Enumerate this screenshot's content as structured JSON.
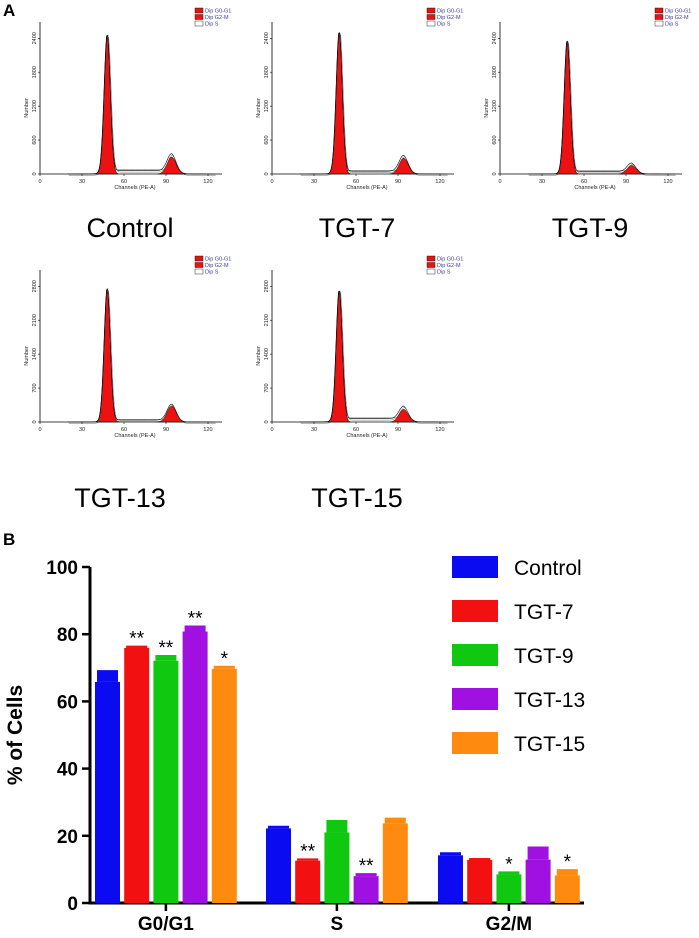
{
  "panel_a": {
    "letter": "A",
    "legend": [
      "Dip G0-G1",
      "Dip G2-M",
      "Dip S"
    ],
    "x_axis_label": "Channels (PE-A)",
    "y_axis_label": "Number",
    "x_ticks": [
      "0",
      "30",
      "60",
      "90",
      "120"
    ],
    "histograms": [
      {
        "label": "Control",
        "y_ticks": [
          "0",
          "600",
          "1200",
          "1800",
          "2400"
        ],
        "g1_peak": 2450,
        "g2_peak": 300,
        "s_level": 60
      },
      {
        "label": "TGT-7",
        "y_ticks": [
          "0",
          "600",
          "1200",
          "1800",
          "2400"
        ],
        "g1_peak": 2500,
        "g2_peak": 280,
        "s_level": 50
      },
      {
        "label": "TGT-9",
        "y_ticks": [
          "0",
          "600",
          "1200",
          "1800",
          "2400"
        ],
        "g1_peak": 2350,
        "g2_peak": 150,
        "s_level": 45
      },
      {
        "label": "TGT-13",
        "y_ticks": [
          "0",
          "700",
          "1400",
          "2100",
          "2800"
        ],
        "g1_peak": 2750,
        "g2_peak": 330,
        "s_level": 40
      },
      {
        "label": "TGT-15",
        "y_ticks": [
          "0",
          "700",
          "1400",
          "2100",
          "2800"
        ],
        "g1_peak": 2700,
        "g2_peak": 260,
        "s_level": 70
      }
    ]
  },
  "panel_b": {
    "letter": "B"
  },
  "chart_data": {
    "type": "bar",
    "title": "",
    "xlabel": "",
    "ylabel": "% of Cells",
    "ylim": [
      0,
      100
    ],
    "yticks": [
      0,
      20,
      40,
      60,
      80,
      100
    ],
    "categories": [
      "G0/G1",
      "S",
      "G2/M"
    ],
    "series": [
      {
        "name": "Control",
        "color": "#0b0bf2",
        "values": [
          65.8,
          22.2,
          14.2
        ],
        "errors": [
          3.2,
          0.5,
          0.6
        ],
        "sig": [
          "",
          "",
          ""
        ]
      },
      {
        "name": "TGT-7",
        "color": "#f21010",
        "values": [
          75.9,
          12.6,
          12.8
        ],
        "errors": [
          0.4,
          0.4,
          0.3
        ],
        "sig": [
          "**",
          "**",
          ""
        ]
      },
      {
        "name": "TGT-9",
        "color": "#10c810",
        "values": [
          72.1,
          21.0,
          8.5
        ],
        "errors": [
          1.4,
          3.4,
          0.6
        ],
        "sig": [
          "**",
          "",
          "*"
        ]
      },
      {
        "name": "TGT-13",
        "color": "#a010e0",
        "values": [
          80.8,
          8.0,
          12.9
        ],
        "errors": [
          1.5,
          0.6,
          3.6
        ],
        "sig": [
          "**",
          "**",
          ""
        ]
      },
      {
        "name": "TGT-15",
        "color": "#ff8a10",
        "values": [
          69.7,
          23.7,
          8.2
        ],
        "errors": [
          0.6,
          1.4,
          1.6
        ],
        "sig": [
          "*",
          "",
          "*"
        ]
      }
    ]
  }
}
